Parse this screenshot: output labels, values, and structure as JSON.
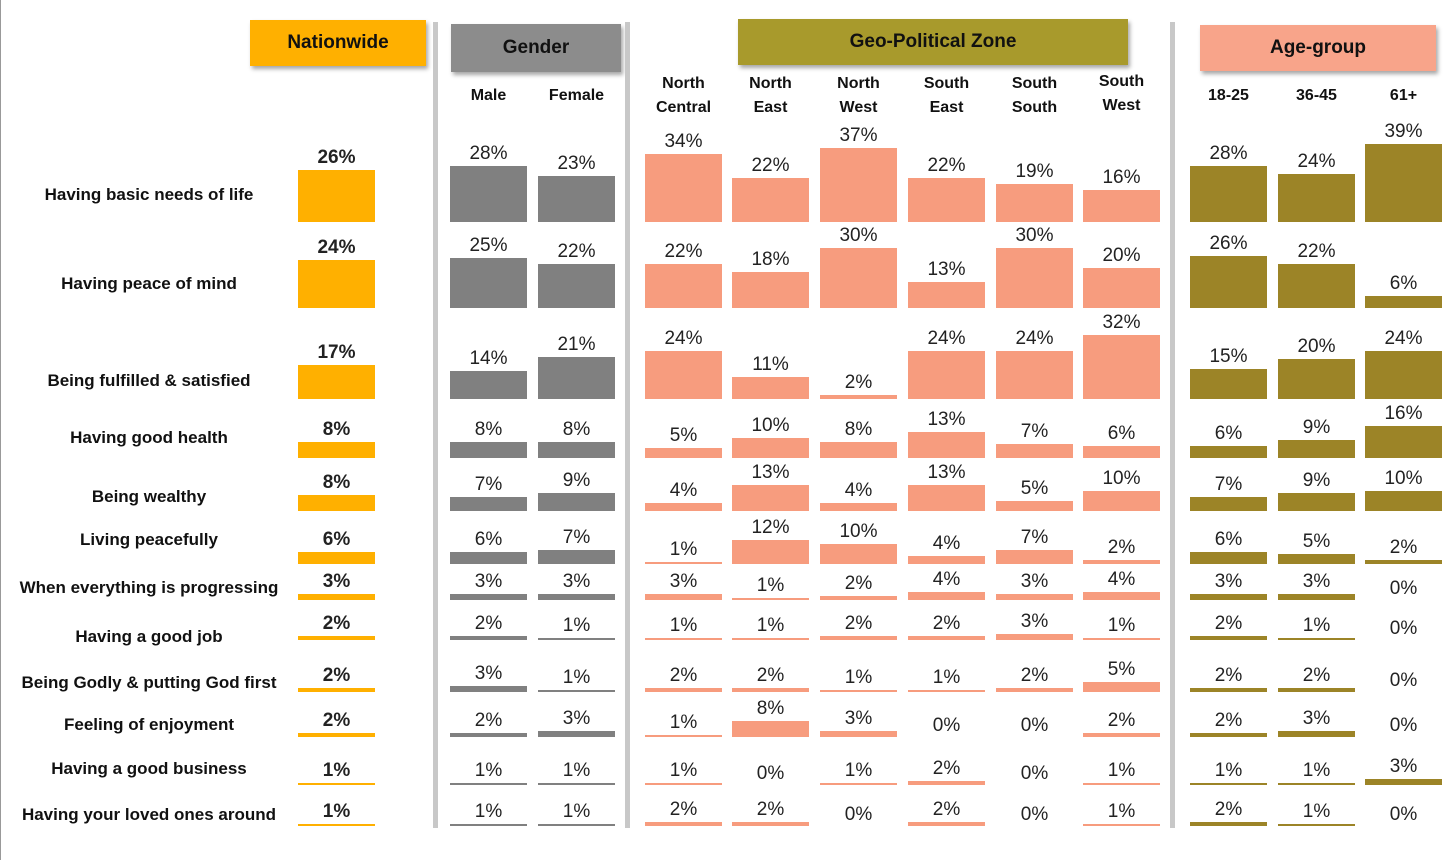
{
  "colors": {
    "nationwide": "#FFB000",
    "gender": "#808080",
    "zone": "#F79C7E",
    "age": "#9C8427",
    "hdr_nationwide": "#FFB000",
    "hdr_gender": "#8C8C8C",
    "hdr_zone": "#A89A2C",
    "hdr_age": "#F8A48A"
  },
  "groups": {
    "nationwide": "Nationwide",
    "gender": "Gender",
    "zone": "Geo-Political Zone",
    "age": "Age-group"
  },
  "chart_data": {
    "type": "bar",
    "categories": [
      "Having basic needs of life",
      "Having peace of mind",
      "Being fulfilled & satisfied",
      "Having good health",
      "Being wealthy",
      "Living peacefully",
      "When everything is progressing",
      "Having a good job",
      "Being Godly & putting God first",
      "Feeling of enjoyment",
      "Having a good business",
      "Having your loved ones around"
    ],
    "series": [
      {
        "group": "Nationwide",
        "name": "",
        "values": [
          26,
          24,
          17,
          8,
          8,
          6,
          3,
          2,
          2,
          2,
          1,
          1
        ]
      },
      {
        "group": "Gender",
        "name": "Male",
        "values": [
          28,
          25,
          14,
          8,
          7,
          6,
          3,
          2,
          3,
          2,
          1,
          1
        ]
      },
      {
        "group": "Gender",
        "name": "Female",
        "values": [
          23,
          22,
          21,
          8,
          9,
          7,
          3,
          1,
          1,
          3,
          1,
          1
        ]
      },
      {
        "group": "Geo-Political Zone",
        "name": "North Central",
        "values": [
          34,
          22,
          24,
          5,
          4,
          1,
          3,
          1,
          2,
          1,
          1,
          2
        ]
      },
      {
        "group": "Geo-Political Zone",
        "name": "North East",
        "values": [
          22,
          18,
          11,
          10,
          13,
          12,
          1,
          1,
          2,
          8,
          0,
          2
        ]
      },
      {
        "group": "Geo-Political Zone",
        "name": "North West",
        "values": [
          37,
          30,
          2,
          8,
          4,
          10,
          2,
          2,
          1,
          3,
          1,
          0
        ]
      },
      {
        "group": "Geo-Political Zone",
        "name": "South East",
        "values": [
          22,
          13,
          24,
          13,
          13,
          4,
          4,
          2,
          1,
          0,
          2,
          2
        ]
      },
      {
        "group": "Geo-Political Zone",
        "name": "South South",
        "values": [
          19,
          30,
          24,
          7,
          5,
          7,
          3,
          3,
          2,
          0,
          0,
          0
        ]
      },
      {
        "group": "Geo-Political Zone",
        "name": "South West",
        "values": [
          16,
          20,
          32,
          6,
          10,
          2,
          4,
          1,
          5,
          2,
          1,
          1
        ]
      },
      {
        "group": "Age-group",
        "name": "18-25",
        "values": [
          28,
          26,
          15,
          6,
          7,
          6,
          3,
          2,
          2,
          2,
          1,
          2
        ]
      },
      {
        "group": "Age-group",
        "name": "36-45",
        "values": [
          24,
          22,
          20,
          9,
          9,
          5,
          3,
          1,
          2,
          3,
          1,
          1
        ]
      },
      {
        "group": "Age-group",
        "name": "61+",
        "values": [
          39,
          6,
          24,
          16,
          10,
          2,
          0,
          0,
          0,
          0,
          3,
          0
        ]
      }
    ],
    "value_suffix": "%",
    "grid": false
  }
}
